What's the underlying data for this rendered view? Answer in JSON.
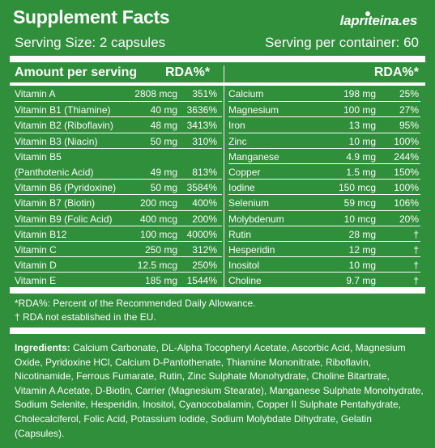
{
  "header": {
    "title": "Supplement Facts",
    "logo": "lapr",
    "logo_rest": "teina.es",
    "serving_size": "Serving Size: 2 capsules",
    "servings_per_container": "Serving per container: 60"
  },
  "table": {
    "left_header": "Amount per serving",
    "left_rda_header": "RDA%*",
    "right_rda_header": "RDA%*",
    "left_rows": [
      {
        "name": "Vitamin A",
        "amount": "2808 mcg",
        "rda": "351%"
      },
      {
        "name": "Vitamin B1 (Thiamine)",
        "amount": "40 mg",
        "rda": "3636%"
      },
      {
        "name": "Vitamin B2 (Riboflavin)",
        "amount": "48 mg",
        "rda": "3413%"
      },
      {
        "name": "Vitamin B3 (Niacin)",
        "amount": "50 mg",
        "rda": "310%"
      },
      {
        "name": "Vitamin B5",
        "name2": "(Panthotenic Acid)",
        "amount": "49 mg",
        "rda": "813%"
      },
      {
        "name": "Vitamin B6 (Pyridoxine)",
        "amount": "50 mg",
        "rda": "3584%"
      },
      {
        "name": "Vitamin B7 (Biotin)",
        "amount": "200 mcg",
        "rda": "400%"
      },
      {
        "name": "Vitamin B9 (Folic Acid)",
        "amount": "400 mcg",
        "rda": "200%"
      },
      {
        "name": "Vitamin B12",
        "amount": "100 mcg",
        "rda": "4000%"
      },
      {
        "name": "Vitamin C",
        "amount": "250 mg",
        "rda": "312%"
      },
      {
        "name": "Vitamin D",
        "amount": "12.5 mcg",
        "rda": "250%"
      },
      {
        "name": "Vitamin E",
        "amount": "185 mg",
        "rda": "1544%"
      }
    ],
    "right_rows": [
      {
        "name": "Calcium",
        "amount": "198 mg",
        "rda": "25%"
      },
      {
        "name": "Magnesium",
        "amount": "100 mg",
        "rda": "27%"
      },
      {
        "name": "Iron",
        "amount": "13 mg",
        "rda": "95%"
      },
      {
        "name": "Zinc",
        "amount": "10 mg",
        "rda": "100%"
      },
      {
        "name": "Manganese",
        "amount": "4.9 mg",
        "rda": "244%"
      },
      {
        "name": "Copper",
        "amount": "1.5 mg",
        "rda": "150%"
      },
      {
        "name": "Iodine",
        "amount": "150 mcg",
        "rda": "100%"
      },
      {
        "name": "Selenium",
        "amount": "59 mcg",
        "rda": "106%"
      },
      {
        "name": "Molybdenum",
        "amount": "10 mcg",
        "rda": "20%"
      },
      {
        "name": "Rutin",
        "amount": "28 mg",
        "rda": "†"
      },
      {
        "name": "Hesperidin",
        "amount": "12 mg",
        "rda": "†"
      },
      {
        "name": "Inositol",
        "amount": "10 mg",
        "rda": "†"
      },
      {
        "name": "Choline",
        "amount": "9.7 mg",
        "rda": "†"
      }
    ]
  },
  "notes": {
    "rda_note": "*RDA%: Percent of the Recommended Daily Allowance.",
    "dagger_note": "† RDA not established in the EU."
  },
  "ingredients": {
    "label": "Ingredients:",
    "text": " Calcium Carbonate, DL-Alpha Tocopheryl Acetate, Ascorbic Acid, Magnesium Oxide, Pyridoxine HCl, Calcium D-Pantothenate, Thiamine Mononitrate, Riboflavin, Nicotinamide, Ferrous Fumarate, Rutin, Zinc Sulphate Monohydrate, Choline Bitartrate, Vitamin A Acetate, D-Biotin, Carrier (Magnesium Stearate), Manganese Sulphate Monohydrate, Sodium Selenite, Hesperidin, Inositol, Cyanocobalamin, Copper II Sulphate Pentahydrate, Cholecalciferol, Folic Acid, Potassium Iodide, Sodium Molybdate Dihydrate, Gelatin (Capsules)."
  },
  "colors": {
    "background": "#2f8f3a",
    "text": "#ffffff"
  }
}
